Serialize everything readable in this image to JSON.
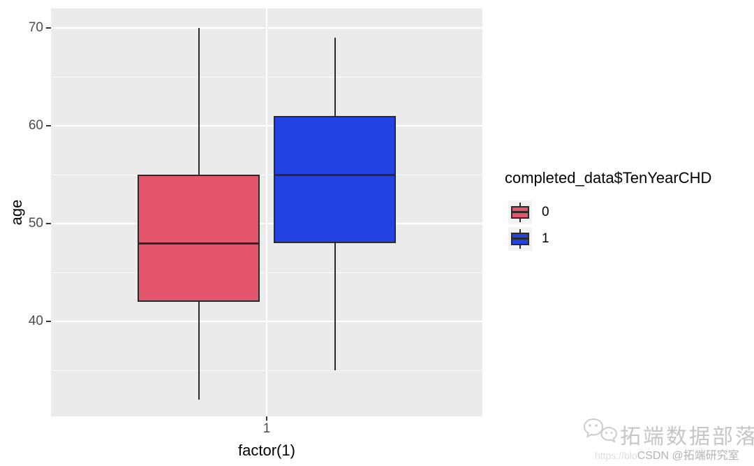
{
  "chart_data": {
    "type": "boxplot",
    "title": "",
    "xlabel": "factor(1)",
    "ylabel": "age",
    "x_categories": [
      "1"
    ],
    "y_tick_labels": [
      "40",
      "50",
      "60",
      "70"
    ],
    "y_tick_values": [
      40,
      50,
      60,
      70
    ],
    "y_minor_values": [
      35,
      45,
      55,
      65
    ],
    "ylim": [
      30.3,
      72
    ],
    "grid": "white major+minor gridlines on gray panel",
    "legend_position": "right",
    "legend_title": "completed_data$TenYearCHD",
    "groups": [
      {
        "label": "0",
        "fill": "#E4566B",
        "stats": {
          "min": 32,
          "q1": 42,
          "median": 48,
          "q3": 55,
          "max": 70
        }
      },
      {
        "label": "1",
        "fill": "#2342E4",
        "stats": {
          "min": 35,
          "q1": 48,
          "median": 55,
          "q3": 61,
          "max": 69
        }
      }
    ],
    "panel_bg": "#EBEBEB",
    "box_border": "#2A2A2A",
    "tick_color": "#333333",
    "tick_label_color": "#4D4D4D"
  },
  "watermark": {
    "brand": "拓端数据部落",
    "overlay_url": "https://blo",
    "overlay_credit": "CSDN @拓端研究室",
    "icon": "chat-bubbles-icon"
  }
}
